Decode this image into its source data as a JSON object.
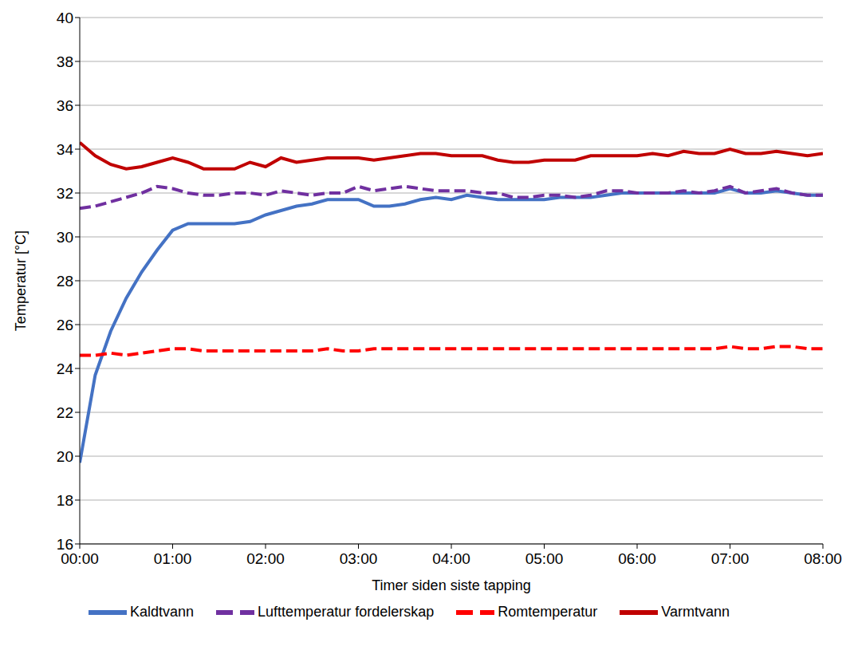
{
  "chart_data": {
    "type": "line",
    "x_label": "Timer siden siste tapping",
    "y_label": "Temperatur [°C]",
    "x": [
      0,
      10,
      20,
      30,
      40,
      50,
      60,
      70,
      80,
      90,
      100,
      110,
      120,
      130,
      140,
      150,
      160,
      170,
      180,
      190,
      200,
      210,
      220,
      230,
      240,
      250,
      260,
      270,
      280,
      290,
      300,
      310,
      320,
      330,
      340,
      350,
      360,
      370,
      380,
      390,
      400,
      410,
      420,
      430,
      440,
      450,
      460,
      470,
      480
    ],
    "xlim": [
      0,
      480
    ],
    "xticks": [
      {
        "value": 0,
        "label": "00:00"
      },
      {
        "value": 60,
        "label": "01:00"
      },
      {
        "value": 120,
        "label": "02:00"
      },
      {
        "value": 180,
        "label": "03:00"
      },
      {
        "value": 240,
        "label": "04:00"
      },
      {
        "value": 300,
        "label": "05:00"
      },
      {
        "value": 360,
        "label": "06:00"
      },
      {
        "value": 420,
        "label": "07:00"
      },
      {
        "value": 480,
        "label": "08:00"
      }
    ],
    "ylim": [
      16,
      40
    ],
    "yticks": [
      16,
      18,
      20,
      22,
      24,
      26,
      28,
      30,
      32,
      34,
      36,
      38,
      40
    ],
    "grid": true,
    "legend": "bottom",
    "series": [
      {
        "name": "Kaldtvann",
        "color": "#4472c4",
        "line_style": "solid",
        "values": [
          19.7,
          23.7,
          25.7,
          27.2,
          28.4,
          29.4,
          30.3,
          30.6,
          30.6,
          30.6,
          30.6,
          30.7,
          31.0,
          31.2,
          31.4,
          31.5,
          31.7,
          31.7,
          31.7,
          31.4,
          31.4,
          31.5,
          31.7,
          31.8,
          31.7,
          31.9,
          31.8,
          31.7,
          31.7,
          31.7,
          31.7,
          31.8,
          31.8,
          31.8,
          31.9,
          32.0,
          32.0,
          32.0,
          32.0,
          32.0,
          32.0,
          32.0,
          32.2,
          32.0,
          32.0,
          32.1,
          32.0,
          31.9,
          31.9
        ]
      },
      {
        "name": "Varmtvann",
        "color": "#c00000",
        "line_style": "solid",
        "values": [
          34.3,
          33.7,
          33.3,
          33.1,
          33.2,
          33.4,
          33.6,
          33.4,
          33.1,
          33.1,
          33.1,
          33.4,
          33.2,
          33.6,
          33.4,
          33.5,
          33.6,
          33.6,
          33.6,
          33.5,
          33.6,
          33.7,
          33.8,
          33.8,
          33.7,
          33.7,
          33.7,
          33.5,
          33.4,
          33.4,
          33.5,
          33.5,
          33.5,
          33.7,
          33.7,
          33.7,
          33.7,
          33.8,
          33.7,
          33.9,
          33.8,
          33.8,
          34.0,
          33.8,
          33.8,
          33.9,
          33.8,
          33.7,
          33.8
        ]
      },
      {
        "name": "Lufttemperatur fordelerskap",
        "color": "#7030a0",
        "line_style": "dashed",
        "values": [
          31.3,
          31.4,
          31.6,
          31.8,
          32.0,
          32.3,
          32.2,
          32.0,
          31.9,
          31.9,
          32.0,
          32.0,
          31.9,
          32.1,
          32.0,
          31.9,
          32.0,
          32.0,
          32.3,
          32.1,
          32.2,
          32.3,
          32.2,
          32.1,
          32.1,
          32.1,
          32.0,
          32.0,
          31.8,
          31.8,
          31.9,
          31.9,
          31.8,
          31.9,
          32.1,
          32.1,
          32.0,
          32.0,
          32.0,
          32.1,
          32.0,
          32.1,
          32.3,
          32.0,
          32.1,
          32.2,
          32.0,
          31.9,
          31.9
        ]
      },
      {
        "name": "Romtemperatur",
        "color": "#ff0000",
        "line_style": "dashed",
        "values": [
          24.6,
          24.6,
          24.7,
          24.6,
          24.7,
          24.8,
          24.9,
          24.9,
          24.8,
          24.8,
          24.8,
          24.8,
          24.8,
          24.8,
          24.8,
          24.8,
          24.9,
          24.8,
          24.8,
          24.9,
          24.9,
          24.9,
          24.9,
          24.9,
          24.9,
          24.9,
          24.9,
          24.9,
          24.9,
          24.9,
          24.9,
          24.9,
          24.9,
          24.9,
          24.9,
          24.9,
          24.9,
          24.9,
          24.9,
          24.9,
          24.9,
          24.9,
          25.0,
          24.9,
          24.9,
          25.0,
          25.0,
          24.9,
          24.9
        ]
      }
    ]
  }
}
